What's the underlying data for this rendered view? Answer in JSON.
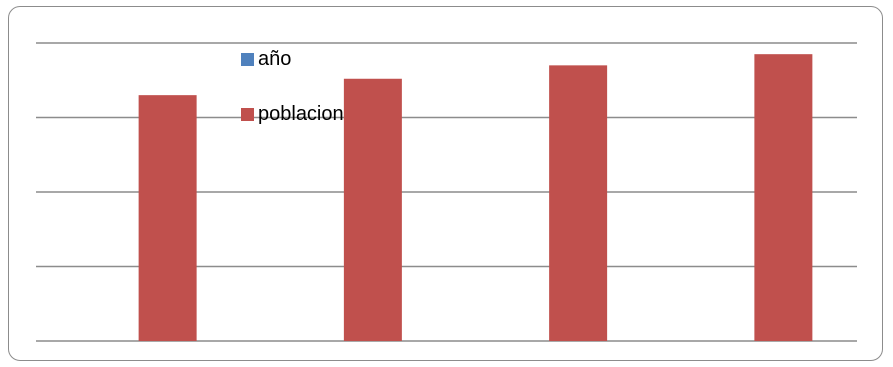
{
  "chart_data": {
    "type": "bar",
    "categories": [
      "",
      "",
      "",
      ""
    ],
    "series": [
      {
        "name": "año",
        "color": "#4f81bd",
        "values": [
          0,
          0,
          0,
          0
        ]
      },
      {
        "name": "poblacion",
        "color": "#c0504d",
        "values": [
          3.3,
          3.52,
          3.7,
          3.85
        ]
      }
    ],
    "ylim": [
      0,
      4
    ],
    "grid": true,
    "legend_position": "top-center",
    "title": "",
    "xlabel": "",
    "ylabel": ""
  }
}
